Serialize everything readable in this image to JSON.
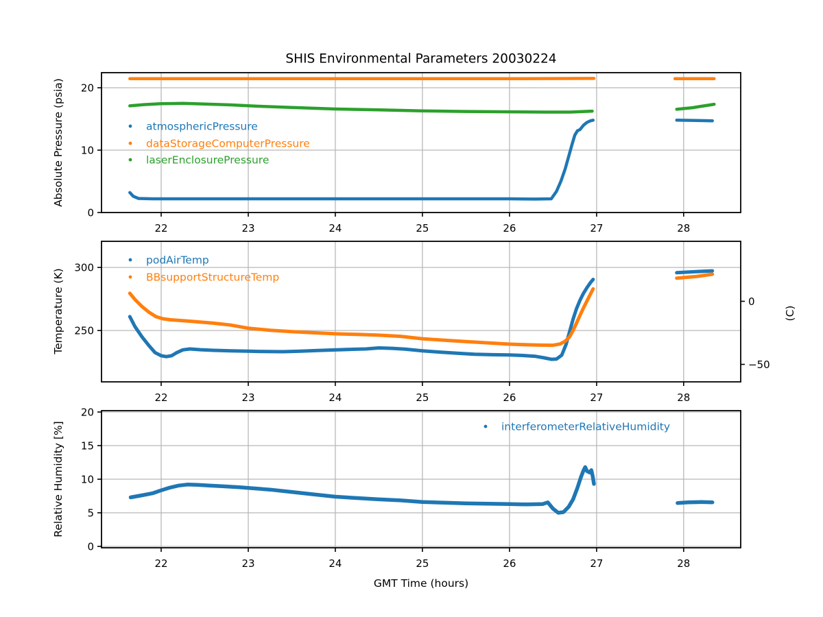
{
  "title": "SHIS Environmental Parameters 20030224",
  "xlabel": "GMT Time (hours)",
  "colors": {
    "blue": "#1f77b4",
    "orange": "#ff7f0e",
    "green": "#2ca02c",
    "grid": "#b8b8b8",
    "spine": "#000000",
    "background": "#ffffff"
  },
  "chart_data": [
    {
      "type": "scatter",
      "ylabel": "Absolute Pressure (psia)",
      "xlim": [
        21.315,
        28.655
      ],
      "ylim": [
        0,
        22.42
      ],
      "xticks": [
        22,
        23,
        24,
        25,
        26,
        27,
        28
      ],
      "yticks": [
        0,
        10,
        20
      ],
      "grid": true,
      "legend_position": "upper-left",
      "series": [
        {
          "name": "atmosphericPressure",
          "color": "#1f77b4",
          "segments": [
            [
              [
                21.64,
                3.2
              ],
              [
                21.68,
                2.6
              ],
              [
                21.74,
                2.25
              ],
              [
                21.9,
                2.2
              ],
              [
                22.5,
                2.2
              ],
              [
                23.0,
                2.2
              ],
              [
                23.5,
                2.2
              ],
              [
                24.0,
                2.2
              ],
              [
                24.5,
                2.2
              ],
              [
                25.0,
                2.2
              ],
              [
                25.5,
                2.2
              ],
              [
                26.0,
                2.2
              ],
              [
                26.3,
                2.15
              ],
              [
                26.48,
                2.2
              ],
              [
                26.54,
                3.4
              ],
              [
                26.59,
                5.0
              ],
              [
                26.64,
                7.0
              ],
              [
                26.68,
                9.0
              ],
              [
                26.72,
                11.0
              ],
              [
                26.75,
                12.4
              ],
              [
                26.78,
                13.1
              ],
              [
                26.81,
                13.3
              ],
              [
                26.85,
                14.0
              ],
              [
                26.89,
                14.45
              ],
              [
                26.93,
                14.7
              ],
              [
                26.96,
                14.8
              ]
            ],
            [
              [
                27.92,
                14.8
              ],
              [
                28.15,
                14.75
              ],
              [
                28.33,
                14.7
              ]
            ]
          ]
        },
        {
          "name": "dataStorageComputerPressure",
          "color": "#ff7f0e",
          "segments": [
            [
              [
                21.64,
                21.45
              ],
              [
                23.0,
                21.45
              ],
              [
                24.5,
                21.45
              ],
              [
                26.0,
                21.45
              ],
              [
                26.97,
                21.5
              ]
            ],
            [
              [
                27.9,
                21.45
              ],
              [
                28.35,
                21.45
              ]
            ]
          ]
        },
        {
          "name": "laserEnclosurePressure",
          "color": "#2ca02c",
          "segments": [
            [
              [
                21.64,
                17.1
              ],
              [
                21.8,
                17.3
              ],
              [
                22.0,
                17.45
              ],
              [
                22.25,
                17.5
              ],
              [
                22.5,
                17.4
              ],
              [
                22.8,
                17.25
              ],
              [
                23.1,
                17.05
              ],
              [
                23.5,
                16.85
              ],
              [
                24.0,
                16.6
              ],
              [
                24.5,
                16.45
              ],
              [
                25.0,
                16.3
              ],
              [
                25.5,
                16.2
              ],
              [
                26.0,
                16.15
              ],
              [
                26.4,
                16.1
              ],
              [
                26.7,
                16.1
              ],
              [
                26.95,
                16.25
              ]
            ],
            [
              [
                27.92,
                16.55
              ],
              [
                28.1,
                16.8
              ],
              [
                28.35,
                17.35
              ]
            ]
          ]
        }
      ]
    },
    {
      "type": "scatter",
      "ylabel": "Temperature (K)",
      "ylabel_right": "(C)",
      "xlim": [
        21.315,
        28.655
      ],
      "ylim": [
        209.3,
        320.7
      ],
      "xticks": [
        22,
        23,
        24,
        25,
        26,
        27,
        28
      ],
      "yticks": [
        250,
        300
      ],
      "yticks_right": [
        {
          "label": "0",
          "value": 273.15
        },
        {
          "label": "−50",
          "value": 223.15
        }
      ],
      "grid": true,
      "legend_position": "upper-left",
      "series": [
        {
          "name": "podAirTemp",
          "color": "#1f77b4",
          "segments": [
            [
              [
                21.64,
                261
              ],
              [
                21.7,
                253
              ],
              [
                21.78,
                245
              ],
              [
                21.86,
                238
              ],
              [
                21.93,
                232.5
              ],
              [
                22.0,
                230
              ],
              [
                22.06,
                229.3
              ],
              [
                22.12,
                230
              ],
              [
                22.18,
                232.5
              ],
              [
                22.25,
                234.7
              ],
              [
                22.33,
                235.4
              ],
              [
                22.45,
                234.8
              ],
              [
                22.6,
                234.3
              ],
              [
                22.8,
                233.9
              ],
              [
                23.0,
                233.6
              ],
              [
                23.2,
                233.3
              ],
              [
                23.4,
                233.2
              ],
              [
                23.6,
                233.6
              ],
              [
                23.8,
                234.2
              ],
              [
                24.0,
                234.6
              ],
              [
                24.2,
                235.1
              ],
              [
                24.35,
                235.4
              ],
              [
                24.5,
                236.2
              ],
              [
                24.65,
                235.9
              ],
              [
                24.8,
                235.2
              ],
              [
                25.0,
                233.9
              ],
              [
                25.2,
                232.9
              ],
              [
                25.4,
                232.0
              ],
              [
                25.6,
                231.2
              ],
              [
                25.8,
                230.8
              ],
              [
                26.0,
                230.6
              ],
              [
                26.15,
                230.2
              ],
              [
                26.3,
                229.5
              ],
              [
                26.4,
                228.3
              ],
              [
                26.48,
                227.2
              ],
              [
                26.54,
                227.4
              ],
              [
                26.6,
                230.5
              ],
              [
                26.65,
                239
              ],
              [
                26.69,
                249
              ],
              [
                26.73,
                259
              ],
              [
                26.77,
                267.5
              ],
              [
                26.81,
                274
              ],
              [
                26.85,
                279.5
              ],
              [
                26.89,
                284
              ],
              [
                26.93,
                288
              ],
              [
                26.96,
                290.5
              ]
            ],
            [
              [
                27.92,
                295.8
              ],
              [
                28.1,
                296.5
              ],
              [
                28.33,
                297.3
              ]
            ]
          ]
        },
        {
          "name": "BBsupportStructureTemp",
          "color": "#ff7f0e",
          "segments": [
            [
              [
                21.64,
                279.5
              ],
              [
                21.7,
                274.5
              ],
              [
                21.78,
                269
              ],
              [
                21.86,
                264.5
              ],
              [
                21.94,
                261
              ],
              [
                22.02,
                259.3
              ],
              [
                22.12,
                258.4
              ],
              [
                22.25,
                257.8
              ],
              [
                22.4,
                257.0
              ],
              [
                22.6,
                255.8
              ],
              [
                22.8,
                254.3
              ],
              [
                23.0,
                251.8
              ],
              [
                23.25,
                250.2
              ],
              [
                23.5,
                249.1
              ],
              [
                23.75,
                248.2
              ],
              [
                24.0,
                247.4
              ],
              [
                24.25,
                246.9
              ],
              [
                24.5,
                246.3
              ],
              [
                24.75,
                245.4
              ],
              [
                25.0,
                243.5
              ],
              [
                25.25,
                242.3
              ],
              [
                25.5,
                241.2
              ],
              [
                25.75,
                240.2
              ],
              [
                26.0,
                239.2
              ],
              [
                26.2,
                238.7
              ],
              [
                26.35,
                238.4
              ],
              [
                26.5,
                238.3
              ],
              [
                26.58,
                239.3
              ],
              [
                26.64,
                241.5
              ],
              [
                26.69,
                245
              ],
              [
                26.73,
                250
              ],
              [
                26.77,
                256
              ],
              [
                26.81,
                262
              ],
              [
                26.85,
                268
              ],
              [
                26.89,
                273.5
              ],
              [
                26.93,
                279
              ],
              [
                26.96,
                283
              ]
            ],
            [
              [
                27.92,
                291.5
              ],
              [
                28.15,
                292.8
              ],
              [
                28.33,
                294.6
              ]
            ]
          ]
        }
      ]
    },
    {
      "type": "scatter",
      "ylabel": "Relative Humidity [%]",
      "xlim": [
        21.315,
        28.655
      ],
      "ylim": [
        -0.2,
        20.2
      ],
      "xticks": [
        22,
        23,
        24,
        25,
        26,
        27,
        28
      ],
      "yticks": [
        0,
        5,
        10,
        15,
        20
      ],
      "grid": true,
      "legend_position": "upper-right",
      "series": [
        {
          "name": "interferometerRelativeHumidity",
          "color": "#1f77b4",
          "segments": [
            [
              [
                21.65,
                7.3
              ],
              [
                21.78,
                7.6
              ],
              [
                21.9,
                7.9
              ],
              [
                22.0,
                8.35
              ],
              [
                22.1,
                8.75
              ],
              [
                22.2,
                9.05
              ],
              [
                22.3,
                9.2
              ],
              [
                22.42,
                9.15
              ],
              [
                22.55,
                9.05
              ],
              [
                22.7,
                8.95
              ],
              [
                22.9,
                8.8
              ],
              [
                23.0,
                8.7
              ],
              [
                23.25,
                8.45
              ],
              [
                23.5,
                8.1
              ],
              [
                23.75,
                7.75
              ],
              [
                24.0,
                7.4
              ],
              [
                24.25,
                7.2
              ],
              [
                24.5,
                7.0
              ],
              [
                24.75,
                6.85
              ],
              [
                25.0,
                6.6
              ],
              [
                25.25,
                6.5
              ],
              [
                25.5,
                6.4
              ],
              [
                25.75,
                6.35
              ],
              [
                26.0,
                6.3
              ],
              [
                26.2,
                6.25
              ],
              [
                26.38,
                6.3
              ],
              [
                26.44,
                6.55
              ],
              [
                26.5,
                5.6
              ],
              [
                26.56,
                5.0
              ],
              [
                26.62,
                5.1
              ],
              [
                26.68,
                5.9
              ],
              [
                26.73,
                7.0
              ],
              [
                26.78,
                8.7
              ],
              [
                26.82,
                10.3
              ],
              [
                26.85,
                11.3
              ],
              [
                26.87,
                11.8
              ],
              [
                26.89,
                11.2
              ],
              [
                26.92,
                11.0
              ],
              [
                26.94,
                11.35
              ],
              [
                26.955,
                10.5
              ],
              [
                26.97,
                9.3
              ]
            ],
            [
              [
                27.93,
                6.45
              ],
              [
                28.05,
                6.55
              ],
              [
                28.2,
                6.6
              ],
              [
                28.33,
                6.55
              ]
            ]
          ]
        }
      ]
    }
  ]
}
